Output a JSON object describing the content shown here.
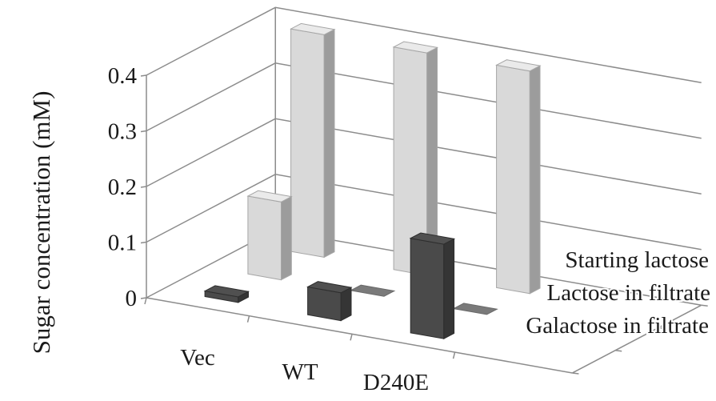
{
  "chart_data": {
    "type": "bar",
    "ylabel": "Sugar concentration (mM)",
    "ylim": [
      0,
      0.4
    ],
    "yticks": [
      "0",
      "0.1",
      "0.2",
      "0.3",
      "0.4"
    ],
    "categories": [
      "Vec",
      "WT",
      "D240E"
    ],
    "grid": true,
    "legend": "right",
    "series": [
      {
        "name": "Starting lactose",
        "values": [
          0.4,
          0.4,
          0.4
        ],
        "color": "#d9d9d9"
      },
      {
        "name": "Lactose in filtrate",
        "values": [
          0.14,
          0.0,
          0.0
        ],
        "color": "#d9d9d9"
      },
      {
        "name": "Galactose in filtrate",
        "values": [
          0.01,
          0.05,
          0.17
        ],
        "color": "#4a4a4a"
      }
    ]
  }
}
